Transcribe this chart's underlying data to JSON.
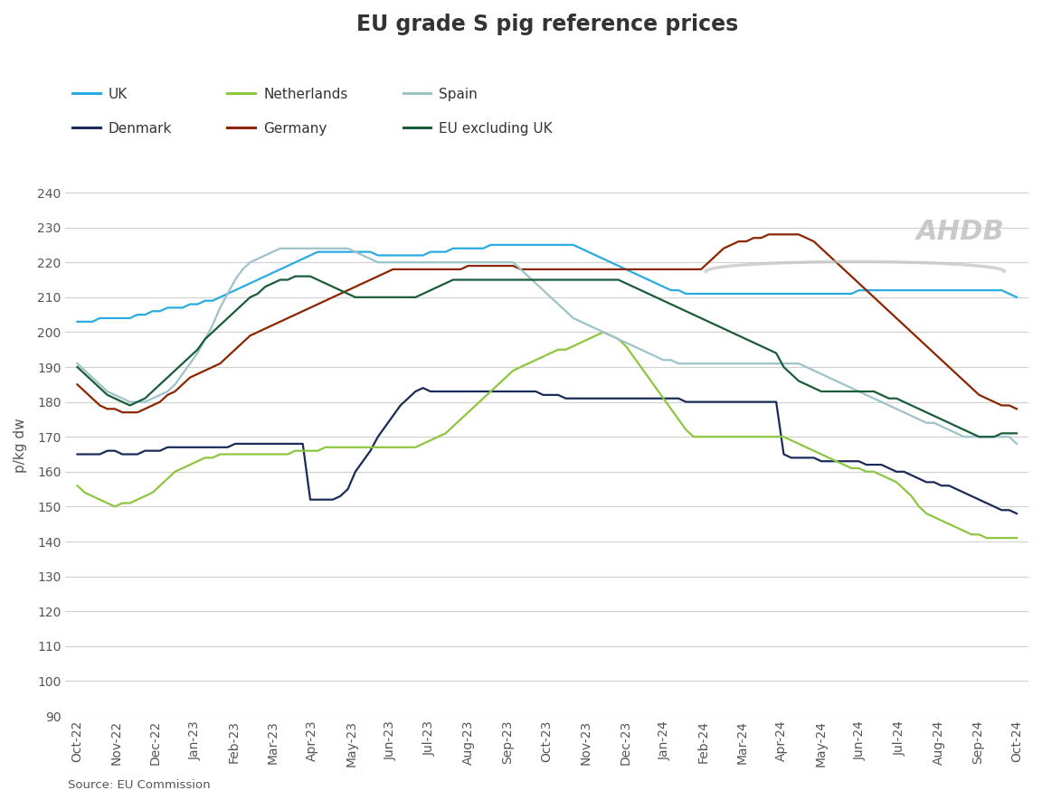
{
  "title": "EU grade S pig reference prices",
  "ylabel": "p/kg dw",
  "source": "Source: EU Commission",
  "ylim": [
    90,
    245
  ],
  "yticks": [
    90,
    100,
    110,
    120,
    130,
    140,
    150,
    160,
    170,
    180,
    190,
    200,
    210,
    220,
    230,
    240
  ],
  "x_labels": [
    "Oct-22",
    "Nov-22",
    "Dec-22",
    "Jan-23",
    "Feb-23",
    "Mar-23",
    "Apr-23",
    "May-23",
    "Jun-23",
    "Jul-23",
    "Aug-23",
    "Sep-23",
    "Oct-23",
    "Nov-23",
    "Dec-23",
    "Jan-24",
    "Feb-24",
    "Mar-24",
    "Apr-24",
    "May-24",
    "Jun-24",
    "Jul-24",
    "Aug-24",
    "Sep-24",
    "Oct-24"
  ],
  "series": {
    "UK": {
      "color": "#29ABE2",
      "data": [
        203,
        203,
        203,
        204,
        204,
        204,
        204,
        204,
        205,
        205,
        206,
        206,
        207,
        207,
        207,
        208,
        208,
        209,
        209,
        210,
        211,
        212,
        213,
        214,
        215,
        216,
        217,
        218,
        219,
        220,
        221,
        222,
        223,
        223,
        223,
        223,
        223,
        223,
        223,
        223,
        222,
        222,
        222,
        222,
        222,
        222,
        222,
        223,
        223,
        223,
        224,
        224,
        224,
        224,
        224,
        225,
        225,
        225,
        225,
        225,
        225,
        225,
        225,
        225,
        225,
        225,
        225,
        224,
        223,
        222,
        221,
        220,
        219,
        218,
        217,
        216,
        215,
        214,
        213,
        212,
        212,
        211,
        211,
        211,
        211,
        211,
        211,
        211,
        211,
        211,
        211,
        211,
        211,
        211,
        211,
        211,
        211,
        211,
        211,
        211,
        211,
        211,
        211,
        211,
        212,
        212,
        212,
        212,
        212,
        212,
        212,
        212,
        212,
        212,
        212,
        212,
        212,
        212,
        212,
        212,
        212,
        212,
        212,
        212,
        211,
        210
      ]
    },
    "Denmark": {
      "color": "#1A2B5A",
      "data": [
        165,
        165,
        165,
        165,
        166,
        166,
        165,
        165,
        165,
        166,
        166,
        166,
        167,
        167,
        167,
        167,
        167,
        167,
        167,
        167,
        167,
        168,
        168,
        168,
        168,
        168,
        168,
        168,
        168,
        168,
        168,
        152,
        152,
        152,
        152,
        153,
        155,
        160,
        163,
        166,
        170,
        173,
        176,
        179,
        181,
        183,
        184,
        183,
        183,
        183,
        183,
        183,
        183,
        183,
        183,
        183,
        183,
        183,
        183,
        183,
        183,
        183,
        182,
        182,
        182,
        181,
        181,
        181,
        181,
        181,
        181,
        181,
        181,
        181,
        181,
        181,
        181,
        181,
        181,
        181,
        181,
        180,
        180,
        180,
        180,
        180,
        180,
        180,
        180,
        180,
        180,
        180,
        180,
        180,
        165,
        164,
        164,
        164,
        164,
        163,
        163,
        163,
        163,
        163,
        163,
        162,
        162,
        162,
        161,
        160,
        160,
        159,
        158,
        157,
        157,
        156,
        156,
        155,
        154,
        153,
        152,
        151,
        150,
        149,
        149,
        148
      ]
    },
    "Netherlands": {
      "color": "#8DC63F",
      "data": [
        156,
        154,
        153,
        152,
        151,
        150,
        151,
        151,
        152,
        153,
        154,
        156,
        158,
        160,
        161,
        162,
        163,
        164,
        164,
        165,
        165,
        165,
        165,
        165,
        165,
        165,
        165,
        165,
        165,
        166,
        166,
        166,
        166,
        167,
        167,
        167,
        167,
        167,
        167,
        167,
        167,
        167,
        167,
        167,
        167,
        167,
        168,
        169,
        170,
        171,
        173,
        175,
        177,
        179,
        181,
        183,
        185,
        187,
        189,
        190,
        191,
        192,
        193,
        194,
        195,
        195,
        196,
        197,
        198,
        199,
        200,
        199,
        198,
        196,
        193,
        190,
        187,
        184,
        181,
        178,
        175,
        172,
        170,
        170,
        170,
        170,
        170,
        170,
        170,
        170,
        170,
        170,
        170,
        170,
        170,
        169,
        168,
        167,
        166,
        165,
        164,
        163,
        162,
        161,
        161,
        160,
        160,
        159,
        158,
        157,
        155,
        153,
        150,
        148,
        147,
        146,
        145,
        144,
        143,
        142,
        142,
        141,
        141,
        141,
        141,
        141
      ]
    },
    "Germany": {
      "color": "#8B2500",
      "data": [
        185,
        183,
        181,
        179,
        178,
        178,
        177,
        177,
        177,
        178,
        179,
        180,
        182,
        183,
        185,
        187,
        188,
        189,
        190,
        191,
        193,
        195,
        197,
        199,
        200,
        201,
        202,
        203,
        204,
        205,
        206,
        207,
        208,
        209,
        210,
        211,
        212,
        213,
        214,
        215,
        216,
        217,
        218,
        218,
        218,
        218,
        218,
        218,
        218,
        218,
        218,
        218,
        219,
        219,
        219,
        219,
        219,
        219,
        219,
        218,
        218,
        218,
        218,
        218,
        218,
        218,
        218,
        218,
        218,
        218,
        218,
        218,
        218,
        218,
        218,
        218,
        218,
        218,
        218,
        218,
        218,
        218,
        218,
        218,
        220,
        222,
        224,
        225,
        226,
        226,
        227,
        227,
        228,
        228,
        228,
        228,
        228,
        227,
        226,
        224,
        222,
        220,
        218,
        216,
        214,
        212,
        210,
        208,
        206,
        204,
        202,
        200,
        198,
        196,
        194,
        192,
        190,
        188,
        186,
        184,
        182,
        181,
        180,
        179,
        179,
        178
      ]
    },
    "Spain": {
      "color": "#9DC3C9",
      "data": [
        191,
        189,
        187,
        185,
        183,
        182,
        181,
        180,
        180,
        180,
        181,
        182,
        183,
        185,
        188,
        191,
        194,
        198,
        202,
        207,
        211,
        215,
        218,
        220,
        221,
        222,
        223,
        224,
        224,
        224,
        224,
        224,
        224,
        224,
        224,
        224,
        224,
        223,
        222,
        221,
        220,
        220,
        220,
        220,
        220,
        220,
        220,
        220,
        220,
        220,
        220,
        220,
        220,
        220,
        220,
        220,
        220,
        220,
        220,
        218,
        216,
        214,
        212,
        210,
        208,
        206,
        204,
        203,
        202,
        201,
        200,
        199,
        198,
        197,
        196,
        195,
        194,
        193,
        192,
        192,
        191,
        191,
        191,
        191,
        191,
        191,
        191,
        191,
        191,
        191,
        191,
        191,
        191,
        191,
        191,
        191,
        191,
        190,
        189,
        188,
        187,
        186,
        185,
        184,
        183,
        182,
        181,
        180,
        179,
        178,
        177,
        176,
        175,
        174,
        174,
        173,
        172,
        171,
        170,
        170,
        170,
        170,
        170,
        170,
        170,
        168
      ]
    },
    "EU excluding UK": {
      "color": "#1A5C3A",
      "data": [
        190,
        188,
        186,
        184,
        182,
        181,
        180,
        179,
        180,
        181,
        183,
        185,
        187,
        189,
        191,
        193,
        195,
        198,
        200,
        202,
        204,
        206,
        208,
        210,
        211,
        213,
        214,
        215,
        215,
        216,
        216,
        216,
        215,
        214,
        213,
        212,
        211,
        210,
        210,
        210,
        210,
        210,
        210,
        210,
        210,
        210,
        211,
        212,
        213,
        214,
        215,
        215,
        215,
        215,
        215,
        215,
        215,
        215,
        215,
        215,
        215,
        215,
        215,
        215,
        215,
        215,
        215,
        215,
        215,
        215,
        215,
        215,
        215,
        214,
        213,
        212,
        211,
        210,
        209,
        208,
        207,
        206,
        205,
        204,
        203,
        202,
        201,
        200,
        199,
        198,
        197,
        196,
        195,
        194,
        190,
        188,
        186,
        185,
        184,
        183,
        183,
        183,
        183,
        183,
        183,
        183,
        183,
        182,
        181,
        181,
        180,
        179,
        178,
        177,
        176,
        175,
        174,
        173,
        172,
        171,
        170,
        170,
        170,
        171,
        171,
        171
      ]
    }
  },
  "legend_order": [
    "UK",
    "Denmark",
    "Netherlands",
    "Germany",
    "Spain",
    "EU excluding UK"
  ],
  "background_color": "#ffffff",
  "grid_color": "#d0d0d0",
  "title_fontsize": 17,
  "axis_fontsize": 11,
  "tick_fontsize": 10,
  "legend_fontsize": 11
}
